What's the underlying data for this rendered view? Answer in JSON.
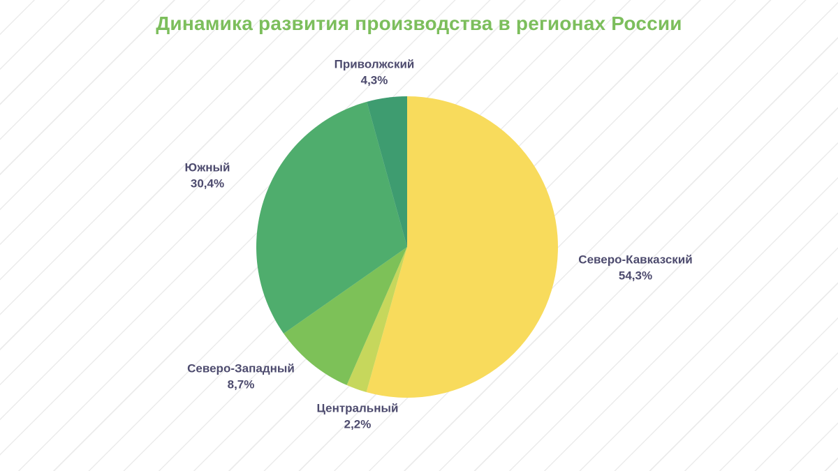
{
  "title": "Динамика развития производства в регионах России",
  "colors": {
    "title": "#7cbe5c",
    "label_text": "#4d4b6e",
    "background_stripe": "#ebebeb"
  },
  "chart_data": {
    "type": "pie",
    "title": "Динамика развития производства в регионах России",
    "start_angle_deg": -90,
    "direction": "clockwise",
    "legend": "none",
    "labels_position": "outside",
    "slices": [
      {
        "label": "Северо-Кавказский",
        "value": 54.3,
        "display_value": "54,3%",
        "color": "#f8db5c"
      },
      {
        "label": "Центральный",
        "value": 2.2,
        "display_value": "2,2%",
        "color": "#c6d75c"
      },
      {
        "label": "Северо-Западный",
        "value": 8.7,
        "display_value": "8,7%",
        "color": "#7dc158"
      },
      {
        "label": "Южный",
        "value": 30.4,
        "display_value": "30,4%",
        "color": "#4fad6d"
      },
      {
        "label": "Приволжский",
        "value": 4.3,
        "display_value": "4,3%",
        "color": "#3e9c70"
      }
    ]
  }
}
